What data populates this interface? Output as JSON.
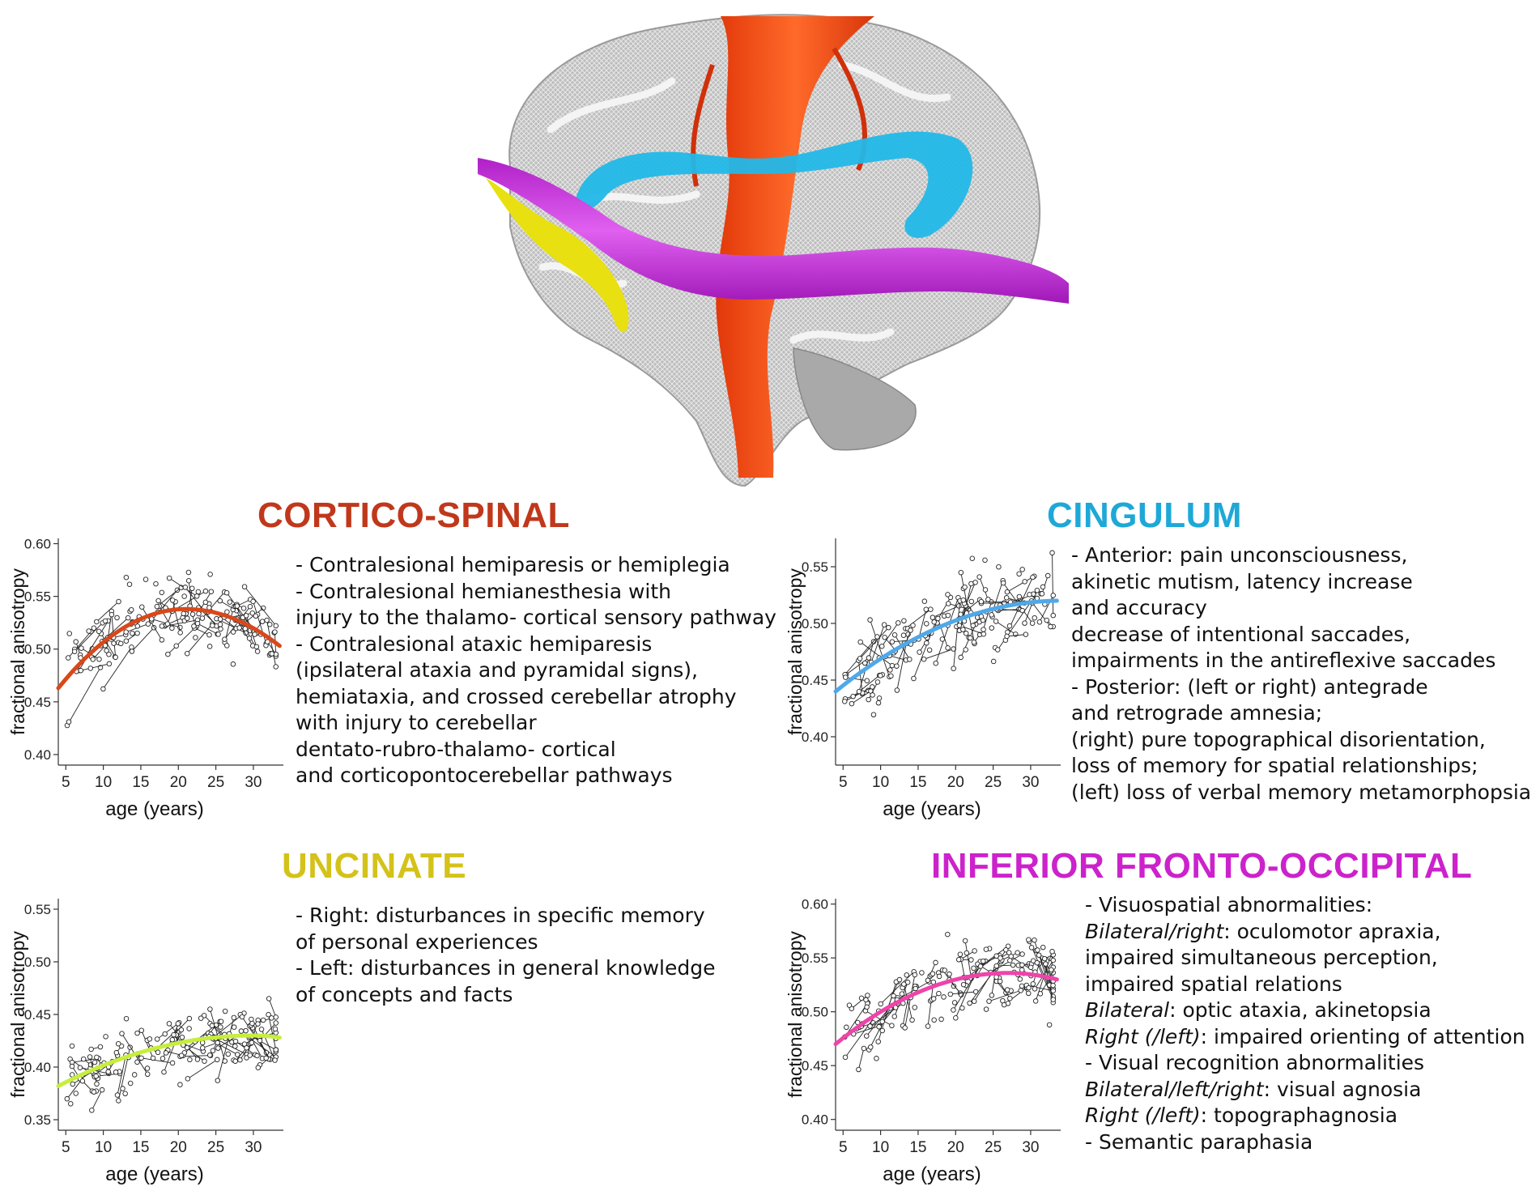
{
  "colors": {
    "cortico_spinal": "#c0381c",
    "cingulum": "#1ea8d8",
    "uncinate": "#d4c21a",
    "ifo": "#cc22cc",
    "brain_orange": "#ff5a1a",
    "brain_blue": "#22b8e8",
    "brain_magenta": "#cc33dd",
    "brain_yellow": "#e8e010"
  },
  "panels": [
    {
      "id": "cortico-spinal",
      "title": "CORTICO-SPINAL",
      "color": "#c0381c",
      "description": [
        [
          {
            "t": "-    Contralesional hemiparesis or hemiplegia"
          }
        ],
        [
          {
            "t": "-    Contralesional hemianesthesia with"
          }
        ],
        [
          {
            "t": "injury to the thalamo- cortical sensory pathway"
          }
        ],
        [
          {
            "t": "-    Contralesional ataxic hemiparesis"
          }
        ],
        [
          {
            "t": "(ipsilateral ataxia and pyramidal signs),"
          }
        ],
        [
          {
            "t": "hemiataxia, and crossed cerebellar atrophy"
          }
        ],
        [
          {
            "t": "with injury to cerebellar"
          }
        ],
        [
          {
            "t": "dentato-rubro-thalamo- cortical"
          }
        ],
        [
          {
            "t": "and corticopontocerebellar pathways"
          }
        ]
      ]
    },
    {
      "id": "cingulum",
      "title": "CINGULUM",
      "color": "#1ea8d8",
      "description": [
        [
          {
            "t": "-    Anterior: pain unconsciousness,"
          }
        ],
        [
          {
            "t": "akinetic mutism, latency increase"
          }
        ],
        [
          {
            "t": "and accuracy"
          }
        ],
        [
          {
            "t": "decrease of intentional saccades,"
          }
        ],
        [
          {
            "t": "impairments in the antireflexive saccades"
          }
        ],
        [
          {
            "t": "-    Posterior: (left or right) antegrade"
          }
        ],
        [
          {
            "t": "and retrograde amnesia;"
          }
        ],
        [
          {
            "t": "(right) pure topographical disorientation,"
          }
        ],
        [
          {
            "t": "loss of memory for spatial relationships;"
          }
        ],
        [
          {
            "t": "(left) loss of verbal memory metamorphopsia"
          }
        ]
      ]
    },
    {
      "id": "uncinate",
      "title": "UNCINATE",
      "color": "#d4c21a",
      "description": [
        [
          {
            "t": "-    Right: disturbances in specific memory"
          }
        ],
        [
          {
            "t": "of personal experiences"
          }
        ],
        [
          {
            "t": "-    Left: disturbances in general knowledge"
          }
        ],
        [
          {
            "t": "of concepts and facts"
          }
        ]
      ]
    },
    {
      "id": "inferior-fronto-occipital",
      "title": "INFERIOR FRONTO-OCCIPITAL",
      "color": "#cc22cc",
      "description": [
        [
          {
            "t": "-    Visuospatial abnormalities:"
          }
        ],
        [
          {
            "t": "Bilateral/right",
            "i": true
          },
          {
            "t": ": oculomotor apraxia,"
          }
        ],
        [
          {
            "t": "impaired simultaneous perception,"
          }
        ],
        [
          {
            "t": "impaired spatial relations"
          }
        ],
        [
          {
            "t": "Bilateral",
            "i": true
          },
          {
            "t": ": optic ataxia, akinetopsia"
          }
        ],
        [
          {
            "t": "Right (/left)",
            "i": true
          },
          {
            "t": ": impaired orienting of attention"
          }
        ],
        [
          {
            "t": "-    Visual recognition abnormalities"
          }
        ],
        [
          {
            "t": "Bilateral/left/right",
            "i": true
          },
          {
            "t": ": visual agnosia"
          }
        ],
        [
          {
            "t": "Right (/left)",
            "i": true
          },
          {
            "t": ": topographagnosia"
          }
        ],
        [
          {
            "t": "-    Semantic paraphasia"
          }
        ]
      ]
    }
  ],
  "chart_data": [
    {
      "type": "scatter",
      "title": "CORTICO-SPINAL",
      "xlabel": "age (years)",
      "ylabel": "fractional anisotropy",
      "xlim": [
        4,
        34
      ],
      "ylim": [
        0.39,
        0.605
      ],
      "xticks": [
        5,
        10,
        15,
        20,
        25,
        30
      ],
      "yticks": [
        0.4,
        0.45,
        0.5,
        0.55,
        0.6
      ],
      "ytick_labels": [
        "0.40",
        "0.45",
        "0.50",
        "0.55",
        "0.60"
      ],
      "fit_color": "#d9481a",
      "fit": {
        "x0": 4,
        "y0": 0.463,
        "peak_x": 21,
        "peak_y": 0.538,
        "x1": 33.5,
        "y1": 0.503
      },
      "scatter": {
        "n": 135,
        "seed": 11,
        "x_range": [
          5,
          33
        ],
        "noise": 0.028,
        "connected": true
      }
    },
    {
      "type": "scatter",
      "title": "CINGULUM",
      "xlabel": "age (years)",
      "ylabel": "fractional anisotropy",
      "xlim": [
        4,
        34
      ],
      "ylim": [
        0.375,
        0.575
      ],
      "xticks": [
        5,
        10,
        15,
        20,
        25,
        30
      ],
      "yticks": [
        0.4,
        0.45,
        0.5,
        0.55
      ],
      "ytick_labels": [
        "0.40",
        "0.45",
        "0.50",
        "0.55"
      ],
      "fit_color": "#4fa8e8",
      "fit": {
        "x0": 4,
        "y0": 0.44,
        "peak_x": 34,
        "peak_y": 0.52,
        "x1": 33.5,
        "y1": 0.52
      },
      "scatter": {
        "n": 130,
        "seed": 23,
        "x_range": [
          5,
          33
        ],
        "noise": 0.03,
        "connected": true
      }
    },
    {
      "type": "scatter",
      "title": "UNCINATE",
      "xlabel": "age (years)",
      "ylabel": "fractional anisotropy",
      "xlim": [
        4,
        34
      ],
      "ylim": [
        0.34,
        0.56
      ],
      "xticks": [
        5,
        10,
        15,
        20,
        25,
        30
      ],
      "yticks": [
        0.35,
        0.4,
        0.45,
        0.5,
        0.55
      ],
      "ytick_labels": [
        "0.35",
        "0.40",
        "0.45",
        "0.50",
        "0.55"
      ],
      "fit_color": "#c6ee3c",
      "fit": {
        "x0": 4,
        "y0": 0.382,
        "peak_x": 30,
        "peak_y": 0.43,
        "x1": 33.5,
        "y1": 0.428
      },
      "scatter": {
        "n": 135,
        "seed": 37,
        "x_range": [
          5,
          33
        ],
        "noise": 0.024,
        "connected": true
      }
    },
    {
      "type": "scatter",
      "title": "INFERIOR FRONTO-OCCIPITAL",
      "xlabel": "age (years)",
      "ylabel": "fractional anisotropy",
      "xlim": [
        4,
        34
      ],
      "ylim": [
        0.39,
        0.605
      ],
      "xticks": [
        5,
        10,
        15,
        20,
        25,
        30
      ],
      "yticks": [
        0.4,
        0.45,
        0.5,
        0.55,
        0.6
      ],
      "ytick_labels": [
        "0.40",
        "0.45",
        "0.50",
        "0.55",
        "0.60"
      ],
      "fit_color": "#ee44aa",
      "fit": {
        "x0": 4,
        "y0": 0.47,
        "peak_x": 27,
        "peak_y": 0.536,
        "x1": 33.5,
        "y1": 0.53
      },
      "scatter": {
        "n": 135,
        "seed": 51,
        "x_range": [
          5,
          33
        ],
        "noise": 0.025,
        "connected": true
      }
    }
  ]
}
